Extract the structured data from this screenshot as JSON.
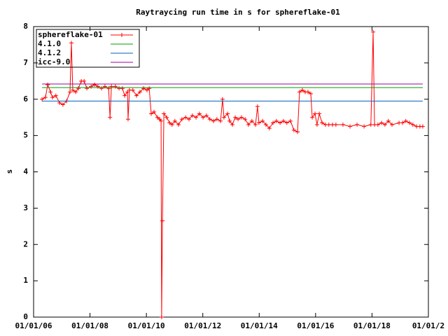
{
  "chart_data": {
    "type": "line",
    "title": "Raytraycing run time in s for sphereflake-01",
    "y_label": "s",
    "xlim": [
      2006,
      2020
    ],
    "ylim": [
      0,
      8
    ],
    "yticks": [
      0,
      1,
      2,
      3,
      4,
      5,
      6,
      7,
      8
    ],
    "xticks": [
      {
        "value": 2006,
        "label": "01/01/06"
      },
      {
        "value": 2008,
        "label": "01/01/08"
      },
      {
        "value": 2010,
        "label": "01/01/10"
      },
      {
        "value": 2012,
        "label": "01/01/12"
      },
      {
        "value": 2014,
        "label": "01/01/14"
      },
      {
        "value": 2016,
        "label": "01/01/16"
      },
      {
        "value": 2018,
        "label": "01/01/18"
      },
      {
        "value": 2020,
        "label": "01/01/2"
      }
    ],
    "legend": "top-left",
    "series": [
      {
        "name": "sphereflake-01",
        "color": "#ff0000",
        "markers": true,
        "x": [
          2006.3,
          2006.42,
          2006.5,
          2006.6,
          2006.67,
          2006.79,
          2006.92,
          2007.04,
          2007.17,
          2007.29,
          2007.34,
          2007.39,
          2007.49,
          2007.59,
          2007.69,
          2007.79,
          2007.89,
          2008.04,
          2008.16,
          2008.28,
          2008.41,
          2008.53,
          2008.66,
          2008.71,
          2008.76,
          2008.9,
          2009.03,
          2009.15,
          2009.23,
          2009.33,
          2009.35,
          2009.4,
          2009.52,
          2009.65,
          2009.77,
          2009.9,
          2010.02,
          2010.1,
          2010.17,
          2010.27,
          2010.39,
          2010.47,
          2010.52,
          2010.54,
          2010.57,
          2010.62,
          2010.72,
          2010.82,
          2010.91,
          2011.01,
          2011.14,
          2011.26,
          2011.39,
          2011.51,
          2011.63,
          2011.76,
          2011.88,
          2012.01,
          2012.13,
          2012.25,
          2012.38,
          2012.5,
          2012.63,
          2012.7,
          2012.75,
          2012.88,
          2012.95,
          2013.05,
          2013.15,
          2013.25,
          2013.37,
          2013.5,
          2013.62,
          2013.74,
          2013.87,
          2013.94,
          2013.99,
          2014.12,
          2014.24,
          2014.36,
          2014.49,
          2014.61,
          2014.74,
          2014.86,
          2014.98,
          2015.11,
          2015.23,
          2015.36,
          2015.43,
          2015.53,
          2015.63,
          2015.73,
          2015.83,
          2015.88,
          2015.98,
          2016.05,
          2016.13,
          2016.23,
          2016.35,
          2016.47,
          2016.6,
          2016.72,
          2016.97,
          2017.22,
          2017.47,
          2017.72,
          2017.96,
          2018.04,
          2018.09,
          2018.21,
          2018.34,
          2018.46,
          2018.58,
          2018.71,
          2018.96,
          2019.08,
          2019.2,
          2019.33,
          2019.45,
          2019.58,
          2019.7,
          2019.8
        ],
        "values": [
          6.0,
          6.05,
          6.4,
          6.2,
          6.05,
          6.1,
          5.9,
          5.85,
          5.95,
          6.2,
          7.55,
          6.25,
          6.2,
          6.3,
          6.5,
          6.5,
          6.3,
          6.35,
          6.4,
          6.35,
          6.3,
          6.35,
          6.3,
          5.5,
          6.35,
          6.35,
          6.3,
          6.3,
          6.1,
          6.2,
          5.45,
          6.25,
          6.25,
          6.1,
          6.2,
          6.3,
          6.25,
          6.3,
          5.6,
          5.65,
          5.5,
          5.45,
          5.4,
          0,
          2.65,
          5.6,
          5.5,
          5.35,
          5.3,
          5.4,
          5.3,
          5.45,
          5.5,
          5.45,
          5.55,
          5.5,
          5.6,
          5.5,
          5.55,
          5.45,
          5.4,
          5.45,
          5.4,
          6.0,
          5.5,
          5.6,
          5.4,
          5.3,
          5.5,
          5.45,
          5.5,
          5.45,
          5.3,
          5.4,
          5.3,
          5.8,
          5.35,
          5.4,
          5.3,
          5.2,
          5.35,
          5.4,
          5.35,
          5.4,
          5.35,
          5.4,
          5.15,
          5.1,
          6.2,
          6.25,
          6.2,
          6.2,
          6.15,
          5.5,
          5.6,
          5.3,
          5.6,
          5.35,
          5.3,
          5.3,
          5.3,
          5.3,
          5.3,
          5.25,
          5.3,
          5.25,
          5.3,
          7.85,
          5.3,
          5.3,
          5.35,
          5.3,
          5.4,
          5.3,
          5.35,
          5.35,
          5.4,
          5.35,
          5.3,
          5.25,
          5.25,
          5.25
        ]
      },
      {
        "name": "4.1.0",
        "color": "#00a000",
        "x": [
          2006.3,
          2019.8
        ],
        "values": [
          6.32,
          6.32
        ]
      },
      {
        "name": "4.1.2",
        "color": "#0060c0",
        "x": [
          2006.3,
          2019.8
        ],
        "values": [
          5.95,
          5.95
        ]
      },
      {
        "name": "icc-9.0",
        "color": "#a000a0",
        "x": [
          2006.3,
          2019.8
        ],
        "values": [
          6.42,
          6.42
        ]
      }
    ]
  }
}
